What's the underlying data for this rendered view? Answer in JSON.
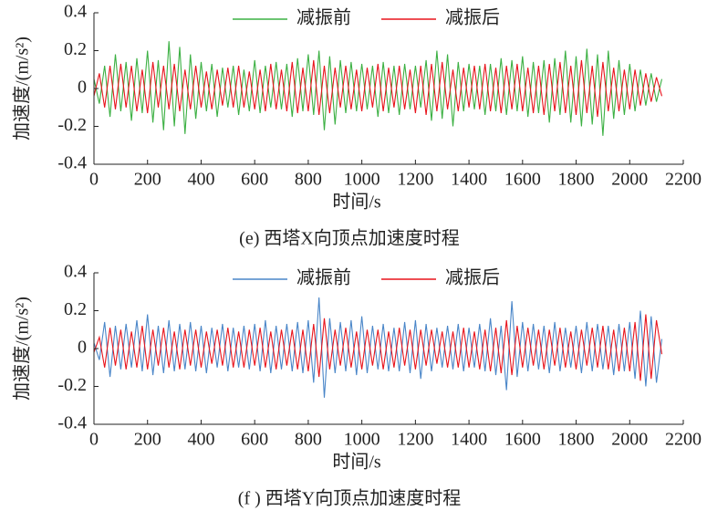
{
  "chart_data": [
    {
      "type": "line",
      "caption": "(e) 西塔X向顶点加速度时程",
      "xlabel": "时间/s",
      "ylabel": "加速度/(m/s²)",
      "legend": "upper center",
      "xlim": [
        0,
        2200
      ],
      "ylim": [
        -0.4,
        0.4
      ],
      "xticks": [
        0,
        200,
        400,
        600,
        800,
        1000,
        1200,
        1400,
        1600,
        1800,
        2000,
        2200
      ],
      "yticks": [
        -0.4,
        -0.2,
        0,
        0.2,
        0.4
      ],
      "x": [
        0,
        20,
        40,
        60,
        80,
        100,
        120,
        140,
        160,
        180,
        200,
        220,
        240,
        260,
        280,
        300,
        320,
        340,
        360,
        380,
        400,
        420,
        440,
        460,
        480,
        500,
        520,
        540,
        560,
        580,
        600,
        620,
        640,
        660,
        680,
        700,
        720,
        740,
        760,
        780,
        800,
        820,
        840,
        860,
        880,
        900,
        920,
        940,
        960,
        980,
        1000,
        1020,
        1040,
        1060,
        1080,
        1100,
        1120,
        1140,
        1160,
        1180,
        1200,
        1220,
        1240,
        1260,
        1280,
        1300,
        1320,
        1340,
        1360,
        1380,
        1400,
        1420,
        1440,
        1460,
        1480,
        1500,
        1520,
        1540,
        1560,
        1580,
        1600,
        1620,
        1640,
        1660,
        1680,
        1700,
        1720,
        1740,
        1760,
        1780,
        1800,
        1820,
        1840,
        1860,
        1880,
        1900,
        1920,
        1940,
        1960,
        1980,
        2000,
        2020,
        2040,
        2060,
        2080,
        2100,
        2120
      ],
      "series": [
        {
          "name": "减振前",
          "color": "#3cb043",
          "values": [
            0.05,
            -0.08,
            0.12,
            -0.15,
            0.18,
            -0.12,
            0.14,
            -0.17,
            0.16,
            -0.13,
            0.2,
            -0.18,
            0.15,
            -0.22,
            0.25,
            -0.2,
            0.22,
            -0.24,
            0.18,
            -0.16,
            0.14,
            -0.12,
            0.13,
            -0.15,
            0.11,
            -0.1,
            0.12,
            -0.14,
            0.1,
            -0.12,
            0.15,
            -0.13,
            0.12,
            -0.1,
            0.14,
            -0.11,
            0.13,
            -0.15,
            0.16,
            -0.12,
            0.18,
            -0.14,
            0.2,
            -0.22,
            0.17,
            -0.19,
            0.15,
            -0.13,
            0.14,
            -0.12,
            0.13,
            -0.11,
            0.12,
            -0.15,
            0.14,
            -0.13,
            0.12,
            -0.14,
            0.13,
            -0.11,
            0.12,
            -0.1,
            0.15,
            -0.17,
            0.2,
            -0.16,
            0.18,
            -0.2,
            0.14,
            -0.12,
            0.13,
            -0.11,
            0.12,
            -0.14,
            0.13,
            -0.12,
            0.16,
            -0.14,
            0.15,
            -0.12,
            0.17,
            -0.15,
            0.14,
            -0.13,
            0.15,
            -0.18,
            0.16,
            -0.14,
            0.2,
            -0.18,
            0.17,
            -0.2,
            0.21,
            -0.19,
            0.18,
            -0.25,
            0.2,
            -0.16,
            0.15,
            -0.14,
            0.13,
            -0.12,
            0.1,
            -0.09,
            0.08,
            -0.07,
            0.05
          ]
        },
        {
          "name": "减振后",
          "color": "#e8141c",
          "values": [
            -0.04,
            0.08,
            -0.1,
            0.12,
            -0.11,
            0.13,
            -0.1,
            0.12,
            -0.12,
            0.1,
            -0.13,
            0.14,
            -0.1,
            0.12,
            -0.11,
            0.13,
            -0.12,
            0.1,
            -0.11,
            0.12,
            -0.1,
            0.09,
            -0.11,
            0.1,
            -0.09,
            0.11,
            -0.1,
            0.12,
            -0.1,
            0.09,
            -0.11,
            0.1,
            -0.12,
            0.13,
            -0.11,
            0.1,
            -0.12,
            0.14,
            -0.13,
            0.11,
            -0.12,
            0.15,
            -0.14,
            0.12,
            -0.13,
            0.11,
            -0.1,
            0.12,
            -0.11,
            0.1,
            -0.12,
            0.11,
            -0.1,
            0.13,
            -0.12,
            0.11,
            -0.1,
            0.12,
            -0.11,
            0.1,
            -0.13,
            0.12,
            -0.14,
            0.13,
            -0.12,
            0.14,
            -0.11,
            0.1,
            -0.12,
            0.11,
            -0.1,
            0.12,
            -0.11,
            0.13,
            -0.12,
            0.11,
            -0.13,
            0.12,
            -0.11,
            0.13,
            -0.12,
            0.11,
            -0.13,
            0.12,
            -0.14,
            0.13,
            -0.12,
            0.14,
            -0.13,
            0.12,
            -0.14,
            0.15,
            -0.13,
            0.12,
            -0.15,
            0.14,
            -0.12,
            0.11,
            -0.12,
            0.1,
            -0.11,
            0.1,
            -0.09,
            0.08,
            -0.07,
            0.06,
            -0.04
          ]
        }
      ]
    },
    {
      "type": "line",
      "caption": "(f ) 西塔Y向顶点加速度时程",
      "xlabel": "时间/s",
      "ylabel": "加速度/(m/s²)",
      "legend": "upper center",
      "xlim": [
        0,
        2200
      ],
      "ylim": [
        -0.4,
        0.4
      ],
      "xticks": [
        0,
        200,
        400,
        600,
        800,
        1000,
        1200,
        1400,
        1600,
        1800,
        2000,
        2200
      ],
      "yticks": [
        -0.4,
        -0.2,
        0,
        0.2,
        0.4
      ],
      "x": [
        0,
        20,
        40,
        60,
        80,
        100,
        120,
        140,
        160,
        180,
        200,
        220,
        240,
        260,
        280,
        300,
        320,
        340,
        360,
        380,
        400,
        420,
        440,
        460,
        480,
        500,
        520,
        540,
        560,
        580,
        600,
        620,
        640,
        660,
        680,
        700,
        720,
        740,
        760,
        780,
        800,
        820,
        840,
        860,
        880,
        900,
        920,
        940,
        960,
        980,
        1000,
        1020,
        1040,
        1060,
        1080,
        1100,
        1120,
        1140,
        1160,
        1180,
        1200,
        1220,
        1240,
        1260,
        1280,
        1300,
        1320,
        1340,
        1360,
        1380,
        1400,
        1420,
        1440,
        1460,
        1480,
        1500,
        1520,
        1540,
        1560,
        1580,
        1600,
        1620,
        1640,
        1660,
        1680,
        1700,
        1720,
        1740,
        1760,
        1780,
        1800,
        1820,
        1840,
        1860,
        1880,
        1900,
        1920,
        1940,
        1960,
        1980,
        2000,
        2020,
        2040,
        2060,
        2080,
        2100,
        2120
      ],
      "series": [
        {
          "name": "减振前",
          "color": "#4a86c8",
          "values": [
            0.03,
            -0.06,
            0.14,
            -0.15,
            0.12,
            -0.11,
            0.13,
            -0.1,
            0.15,
            -0.12,
            0.18,
            -0.14,
            0.12,
            -0.13,
            0.15,
            -0.12,
            0.13,
            -0.11,
            0.14,
            -0.12,
            0.12,
            -0.13,
            0.11,
            -0.1,
            0.13,
            -0.12,
            0.11,
            -0.1,
            0.12,
            -0.11,
            0.13,
            -0.12,
            0.15,
            -0.13,
            0.12,
            -0.11,
            0.13,
            -0.12,
            0.14,
            -0.13,
            0.15,
            -0.18,
            0.27,
            -0.26,
            0.16,
            -0.13,
            0.14,
            -0.12,
            0.15,
            -0.14,
            0.17,
            -0.13,
            0.12,
            -0.11,
            0.13,
            -0.12,
            0.11,
            -0.12,
            0.14,
            -0.13,
            0.15,
            -0.16,
            0.13,
            -0.12,
            0.11,
            -0.1,
            0.12,
            -0.11,
            0.13,
            -0.12,
            0.11,
            -0.1,
            0.13,
            -0.12,
            0.16,
            -0.14,
            0.12,
            -0.22,
            0.25,
            -0.15,
            0.14,
            -0.12,
            0.13,
            -0.11,
            0.12,
            -0.13,
            0.14,
            -0.12,
            0.11,
            -0.1,
            0.12,
            -0.13,
            0.14,
            -0.12,
            0.13,
            -0.11,
            0.12,
            -0.14,
            0.13,
            -0.12,
            0.14,
            -0.16,
            0.2,
            -0.2,
            0.17,
            -0.18,
            0.05
          ]
        },
        {
          "name": "减振后",
          "color": "#e8141c",
          "values": [
            -0.02,
            0.06,
            -0.1,
            0.11,
            -0.09,
            0.1,
            -0.11,
            0.09,
            -0.1,
            0.12,
            -0.11,
            0.1,
            -0.09,
            0.11,
            -0.1,
            0.09,
            -0.11,
            0.1,
            -0.09,
            0.1,
            -0.1,
            0.09,
            -0.08,
            0.1,
            -0.09,
            0.11,
            -0.1,
            0.09,
            -0.1,
            0.1,
            -0.09,
            0.11,
            -0.1,
            0.09,
            -0.11,
            0.1,
            -0.09,
            0.1,
            -0.11,
            0.1,
            -0.12,
            0.13,
            -0.15,
            0.16,
            -0.11,
            0.1,
            -0.09,
            0.11,
            -0.1,
            0.09,
            -0.11,
            0.1,
            -0.09,
            0.1,
            -0.11,
            0.09,
            -0.1,
            0.11,
            -0.09,
            0.1,
            -0.11,
            0.1,
            -0.09,
            0.1,
            -0.08,
            0.09,
            -0.1,
            0.09,
            -0.1,
            0.11,
            -0.1,
            0.09,
            -0.11,
            0.1,
            -0.12,
            0.11,
            -0.13,
            0.15,
            -0.14,
            0.12,
            -0.1,
            0.11,
            -0.09,
            0.1,
            -0.11,
            0.1,
            -0.09,
            0.11,
            -0.1,
            0.09,
            -0.11,
            0.1,
            -0.09,
            0.11,
            -0.1,
            0.12,
            -0.11,
            0.1,
            -0.12,
            0.11,
            -0.12,
            0.14,
            -0.17,
            0.18,
            -0.16,
            0.15,
            -0.03
          ]
        }
      ]
    }
  ]
}
